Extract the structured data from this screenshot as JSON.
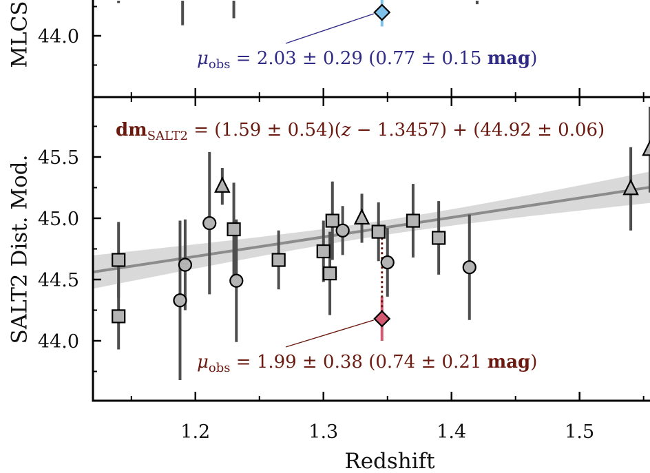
{
  "chart_data": [
    {
      "panel": "top",
      "type": "scatter",
      "ylabel": "MLCS",
      "ylim_visible": [
        43.6,
        44.3
      ],
      "yticks": [
        {
          "value": 44.0,
          "label": "44.0"
        }
      ],
      "colors": {
        "highlight": "#7ec1ea",
        "annotation": "#2e2a86"
      },
      "partial_errorbars": [
        {
          "x": 1.14,
          "y_high": 44.3,
          "y_low": 44.28
        },
        {
          "x": 1.19,
          "y_high": 44.3,
          "y_low": 44.09
        },
        {
          "x": 1.23,
          "y_high": 44.3,
          "y_low": 44.15
        },
        {
          "x": 1.42,
          "y_high": 44.3,
          "y_low": 44.27
        }
      ],
      "highlight_point": {
        "x": 1.3457,
        "y": 44.2,
        "yerr": 0.12,
        "marker": "diamond"
      },
      "annotation": {
        "parts": [
          {
            "t": "μ",
            "style": "italic"
          },
          {
            "t": "obs",
            "style": "sub"
          },
          {
            "t": " = 2.03 ± 0.29  (0.77 ± 0.15 ",
            "style": "normal"
          },
          {
            "t": "mag",
            "style": "bold"
          },
          {
            "t": ")",
            "style": "normal"
          }
        ]
      }
    },
    {
      "panel": "bottom",
      "type": "scatter",
      "xlabel": "Redshift",
      "ylabel": "SALT2 Dist. Mod.",
      "xlim": [
        1.12,
        1.555
      ],
      "ylim": [
        43.55,
        45.99
      ],
      "xticks": [
        {
          "value": 1.2,
          "label": "1.2"
        },
        {
          "value": 1.3,
          "label": "1.3"
        },
        {
          "value": 1.4,
          "label": "1.4"
        },
        {
          "value": 1.5,
          "label": "1.5"
        }
      ],
      "yticks": [
        {
          "value": 44.0,
          "label": "44.0"
        },
        {
          "value": 44.5,
          "label": "44.5"
        },
        {
          "value": 45.0,
          "label": "45.0"
        },
        {
          "value": 45.5,
          "label": "45.5"
        }
      ],
      "colors": {
        "fit_line": "#8c8c8c",
        "band": "#d9d9d9",
        "errorbar": "#4d4d4d",
        "marker_fill": "#b4b4b4",
        "highlight": "#d45a72",
        "annotation": "#6b1a10"
      },
      "fit": {
        "slope": 1.59,
        "slope_err": 0.54,
        "pivot": 1.3457,
        "intercept": 44.92,
        "intercept_err": 0.06
      },
      "fit_label": {
        "parts": [
          {
            "t": "dm",
            "style": "bold"
          },
          {
            "t": "SALT2",
            "style": "sub"
          },
          {
            "t": " = (1.59 ± 0.54)(",
            "style": "normal"
          },
          {
            "t": "z",
            "style": "italic"
          },
          {
            "t": " − 1.3457) + (44.92 ± 0.06)",
            "style": "normal"
          }
        ]
      },
      "points": [
        {
          "x": 1.14,
          "y": 44.66,
          "yerr": 0.31,
          "marker": "square"
        },
        {
          "x": 1.14,
          "y": 44.2,
          "yerr": 0.27,
          "marker": "square"
        },
        {
          "x": 1.188,
          "y": 44.33,
          "yerr": 0.65,
          "marker": "circle"
        },
        {
          "x": 1.192,
          "y": 44.62,
          "yerr": 0.37,
          "marker": "circle"
        },
        {
          "x": 1.211,
          "y": 44.96,
          "yerr": 0.58,
          "marker": "circle"
        },
        {
          "x": 1.221,
          "y": 45.26,
          "yerr": 0.15,
          "marker": "triangle"
        },
        {
          "x": 1.23,
          "y": 44.91,
          "yerr": 0.38,
          "marker": "square"
        },
        {
          "x": 1.232,
          "y": 44.49,
          "yerr": 0.5,
          "marker": "circle"
        },
        {
          "x": 1.265,
          "y": 44.66,
          "yerr": 0.24,
          "marker": "square"
        },
        {
          "x": 1.3,
          "y": 44.73,
          "yerr": 0.25,
          "marker": "square"
        },
        {
          "x": 1.305,
          "y": 44.55,
          "yerr": 0.34,
          "marker": "square"
        },
        {
          "x": 1.307,
          "y": 44.98,
          "yerr": 0.32,
          "marker": "square"
        },
        {
          "x": 1.315,
          "y": 44.9,
          "yerr": 0.2,
          "marker": "circle"
        },
        {
          "x": 1.33,
          "y": 45.0,
          "yerr": 0.2,
          "marker": "triangle"
        },
        {
          "x": 1.343,
          "y": 44.89,
          "yerr": 0.24,
          "marker": "square"
        },
        {
          "x": 1.35,
          "y": 44.64,
          "yerr": 0.28,
          "marker": "circle"
        },
        {
          "x": 1.37,
          "y": 44.98,
          "yerr": 0.3,
          "marker": "square"
        },
        {
          "x": 1.39,
          "y": 44.84,
          "yerr": 0.3,
          "marker": "square"
        },
        {
          "x": 1.414,
          "y": 44.6,
          "yerr": 0.43,
          "marker": "circle"
        },
        {
          "x": 1.54,
          "y": 45.24,
          "yerr": 0.34,
          "marker": "triangle"
        },
        {
          "x": 1.555,
          "y": 45.56,
          "yerr": 0.35,
          "marker": "triangle"
        }
      ],
      "highlight_point": {
        "x": 1.3457,
        "y": 44.18,
        "yerr": 0.18,
        "marker": "diamond",
        "connector_to_y": 44.92
      },
      "annotation": {
        "parts": [
          {
            "t": "μ",
            "style": "italic"
          },
          {
            "t": "obs",
            "style": "sub"
          },
          {
            "t": " = 1.99 ± 0.38  (0.74 ± 0.21 ",
            "style": "normal"
          },
          {
            "t": "mag",
            "style": "bold"
          },
          {
            "t": ")",
            "style": "normal"
          }
        ]
      }
    }
  ]
}
